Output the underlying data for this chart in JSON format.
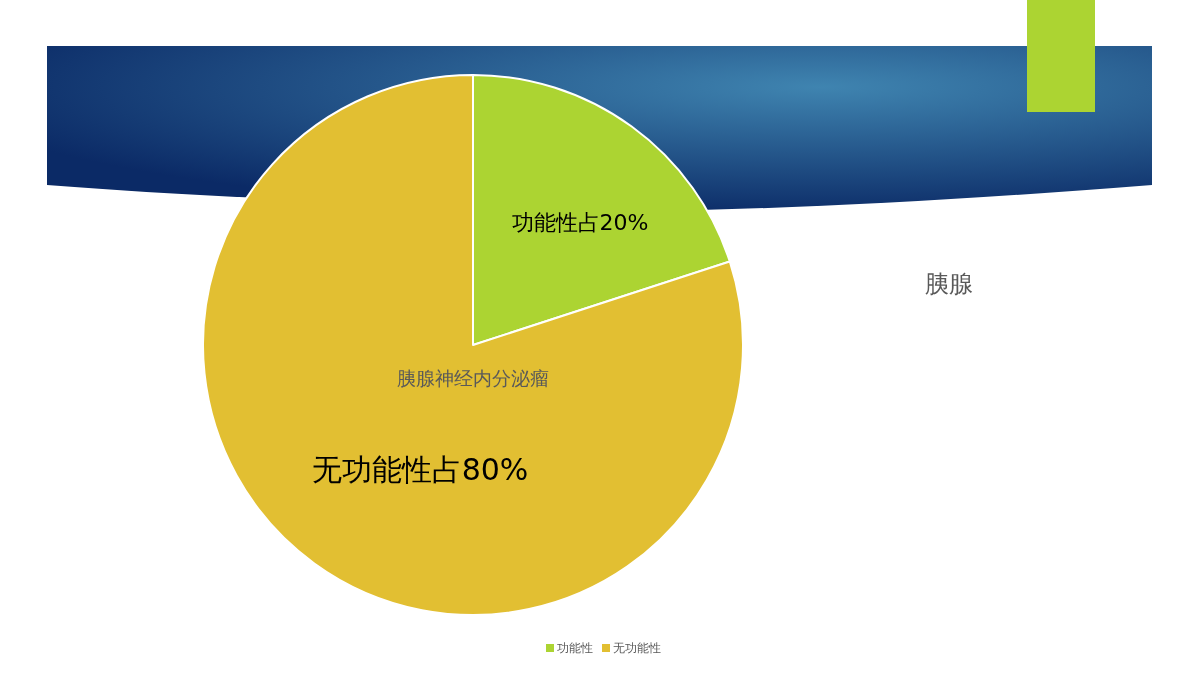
{
  "chart_data": {
    "type": "pie",
    "title": "胰腺神经内分泌瘤",
    "categories": [
      "功能性",
      "无功能性"
    ],
    "values": [
      20,
      80
    ],
    "colors": [
      "#acd432",
      "#e2bf32"
    ],
    "value_labels": [
      "功能性占20%",
      "无功能性占80%"
    ],
    "annotations": [
      "胰腺"
    ],
    "legend": "bottom"
  }
}
